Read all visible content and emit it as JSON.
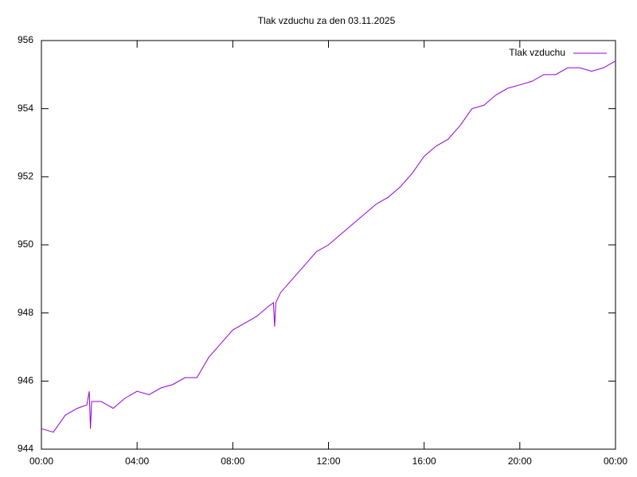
{
  "chart_data": {
    "type": "line",
    "title": "Tlak vzduchu za den 03.11.2025",
    "x": [
      0,
      0.5,
      1,
      1.5,
      1.9,
      2.0,
      2.05,
      2.1,
      2.5,
      3,
      3.5,
      4,
      4.5,
      5,
      5.5,
      6,
      6.5,
      7,
      7.5,
      8,
      8.5,
      9,
      9.5,
      9.7,
      9.75,
      9.8,
      10,
      10.5,
      11,
      11.5,
      12,
      12.5,
      13,
      13.5,
      14,
      14.5,
      15,
      15.5,
      16,
      16.5,
      17,
      17.5,
      18,
      18.5,
      19,
      19.5,
      20,
      20.5,
      21,
      21.5,
      22,
      22.5,
      23,
      23.5,
      24
    ],
    "series": [
      {
        "name": "Tlak vzduchu",
        "color": "#9400d3",
        "values": [
          944.6,
          944.5,
          945.0,
          945.2,
          945.3,
          945.7,
          944.6,
          945.4,
          945.4,
          945.2,
          945.5,
          945.7,
          945.6,
          945.8,
          945.9,
          946.1,
          946.1,
          946.7,
          947.1,
          947.5,
          947.7,
          947.9,
          948.2,
          948.3,
          947.6,
          948.3,
          948.6,
          949.0,
          949.4,
          949.8,
          950.0,
          950.3,
          950.6,
          950.9,
          951.2,
          951.4,
          951.7,
          952.1,
          952.6,
          952.9,
          953.1,
          953.5,
          954.0,
          954.1,
          954.4,
          954.6,
          954.7,
          954.8,
          955.0,
          955.0,
          955.2,
          955.2,
          955.1,
          955.2,
          955.4
        ]
      }
    ],
    "xlim": [
      0,
      24
    ],
    "xticks": [
      {
        "value": 0,
        "label": "00:00"
      },
      {
        "value": 4,
        "label": "04:00"
      },
      {
        "value": 8,
        "label": "08:00"
      },
      {
        "value": 12,
        "label": "12:00"
      },
      {
        "value": 16,
        "label": "16:00"
      },
      {
        "value": 20,
        "label": "20:00"
      },
      {
        "value": 24,
        "label": "00:00"
      }
    ],
    "ylim": [
      944,
      956
    ],
    "yticks": [
      944,
      946,
      948,
      950,
      952,
      954,
      956
    ],
    "grid": false,
    "legend": "top-right"
  }
}
